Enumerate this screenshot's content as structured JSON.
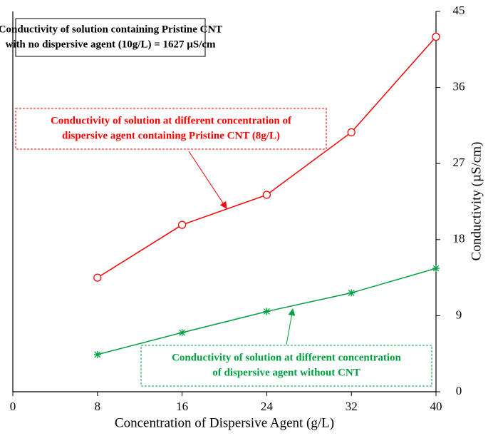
{
  "chart_data": {
    "type": "line",
    "xlabel": "Concentration of Dispersive Agent (g/L)",
    "ylabel": "Conductivity (µS/cm)",
    "x": [
      8,
      16,
      24,
      32,
      40
    ],
    "series": [
      {
        "color": "#ff0000",
        "marker": "circle",
        "values": [
          13.5,
          19.75,
          23.3,
          30.7,
          42.0
        ]
      },
      {
        "color": "#00a040",
        "marker": "asterisk",
        "values": [
          4.4,
          7.0,
          9.5,
          11.7,
          14.6
        ]
      }
    ],
    "xlim": [
      0,
      40
    ],
    "xticks": [
      0,
      8,
      16,
      24,
      32,
      40
    ],
    "ylim": [
      0,
      45
    ],
    "yticks": [
      0,
      9,
      18,
      27,
      36,
      45
    ],
    "annotations": [
      {
        "lines": [
          "Conductivity of solution containing Pristine CNT",
          "with no dispersive agent (10g/L) = 1627 µS/cm"
        ],
        "color": "#000000"
      },
      {
        "lines": [
          "Conductivity of solution at different concentration of",
          "dispersive agent containing Pristine CNT (8g/L)"
        ],
        "color": "#ff0000"
      },
      {
        "lines": [
          "Conductivity of solution at different concentration",
          "of dispersive agent without CNT"
        ],
        "color": "#00a040"
      }
    ]
  }
}
